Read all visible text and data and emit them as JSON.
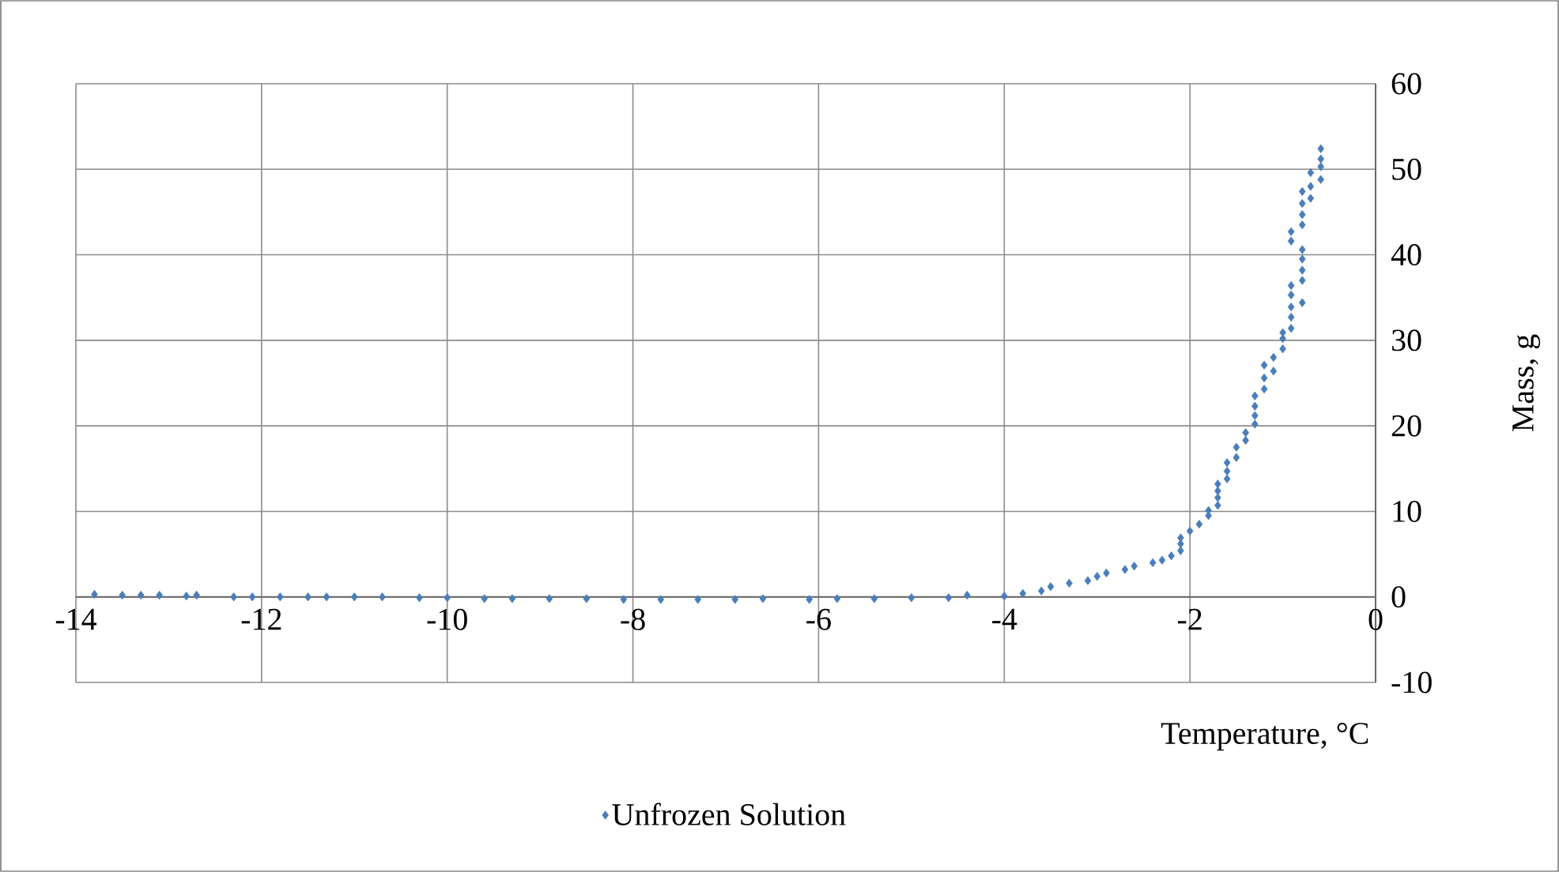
{
  "chart_data": {
    "type": "scatter",
    "xlabel": "Temperature, °C",
    "ylabel": "Mass, g",
    "xlim": [
      -14,
      0
    ],
    "ylim": [
      -10,
      60
    ],
    "xticks": [
      -14,
      -12,
      -10,
      -8,
      -6,
      -4,
      -2,
      0
    ],
    "yticks": [
      -10,
      0,
      10,
      20,
      30,
      40,
      50,
      60
    ],
    "grid": true,
    "legend": "bottom",
    "marker": "diamond",
    "series": [
      {
        "name": "Unfrozen Solution",
        "color": "#4a7ebb",
        "x": [
          -13.8,
          -13.5,
          -13.3,
          -13.1,
          -12.81,
          -12.7,
          -12.3,
          -12.1,
          -11.8,
          -11.5,
          -11.3,
          -11.0,
          -10.7,
          -10.3,
          -10.0,
          -9.6,
          -9.3,
          -8.9,
          -8.5,
          -8.1,
          -7.7,
          -7.3,
          -6.9,
          -6.6,
          -6.1,
          -5.8,
          -5.4,
          -5.0,
          -4.6,
          -4.4,
          -4.0,
          -3.8,
          -3.6,
          -3.5,
          -3.3,
          -3.1,
          -3.0,
          -2.9,
          -2.7,
          -2.6,
          -2.4,
          -2.3,
          -2.2,
          -2.1,
          -2.1,
          -2.1,
          -2.0,
          -1.9,
          -1.8,
          -1.8,
          -1.7,
          -1.7,
          -1.7,
          -1.7,
          -1.6,
          -1.6,
          -1.6,
          -1.5,
          -1.5,
          -1.4,
          -1.4,
          -1.3,
          -1.3,
          -1.3,
          -1.3,
          -1.2,
          -1.2,
          -1.2,
          -1.1,
          -1.1,
          -1.0,
          -1.0,
          -1.0,
          -0.91,
          -0.91,
          -0.91,
          -0.91,
          -0.91,
          -0.79,
          -0.79,
          -0.79,
          -0.79,
          -0.79,
          -0.91,
          -0.91,
          -0.79,
          -0.79,
          -0.79,
          -0.79,
          -0.7,
          -0.7,
          -0.59,
          -0.7,
          -0.59,
          -0.59,
          -0.59
        ],
        "values": [
          0.3,
          0.2,
          0.2,
          0.2,
          0.1,
          0.2,
          0,
          0,
          0,
          0,
          0,
          0,
          0,
          -0.1,
          -0.1,
          -0.2,
          -0.2,
          -0.2,
          -0.2,
          -0.3,
          -0.3,
          -0.3,
          -0.3,
          -0.2,
          -0.3,
          -0.2,
          -0.2,
          -0.1,
          -0.1,
          0.2,
          0.1,
          0.4,
          0.7,
          1.2,
          1.6,
          1.9,
          2.4,
          2.8,
          3.2,
          3.6,
          4.0,
          4.3,
          4.8,
          5.4,
          6.2,
          6.9,
          7.7,
          8.5,
          9.5,
          10.1,
          10.7,
          11.6,
          12.4,
          13.2,
          13.8,
          14.7,
          15.7,
          16.3,
          17.5,
          18.3,
          19.2,
          20.2,
          21.2,
          22.3,
          23.5,
          24.3,
          25.6,
          27.1,
          26.4,
          28.0,
          29.0,
          30.2,
          30.9,
          31.4,
          32.7,
          33.9,
          35.3,
          36.4,
          34.4,
          37.0,
          38.2,
          39.5,
          40.6,
          41.6,
          42.7,
          43.5,
          44.7,
          46.0,
          47.4,
          46.6,
          48.0,
          48.8,
          49.6,
          50.3,
          51.2,
          52.4
        ]
      }
    ]
  }
}
